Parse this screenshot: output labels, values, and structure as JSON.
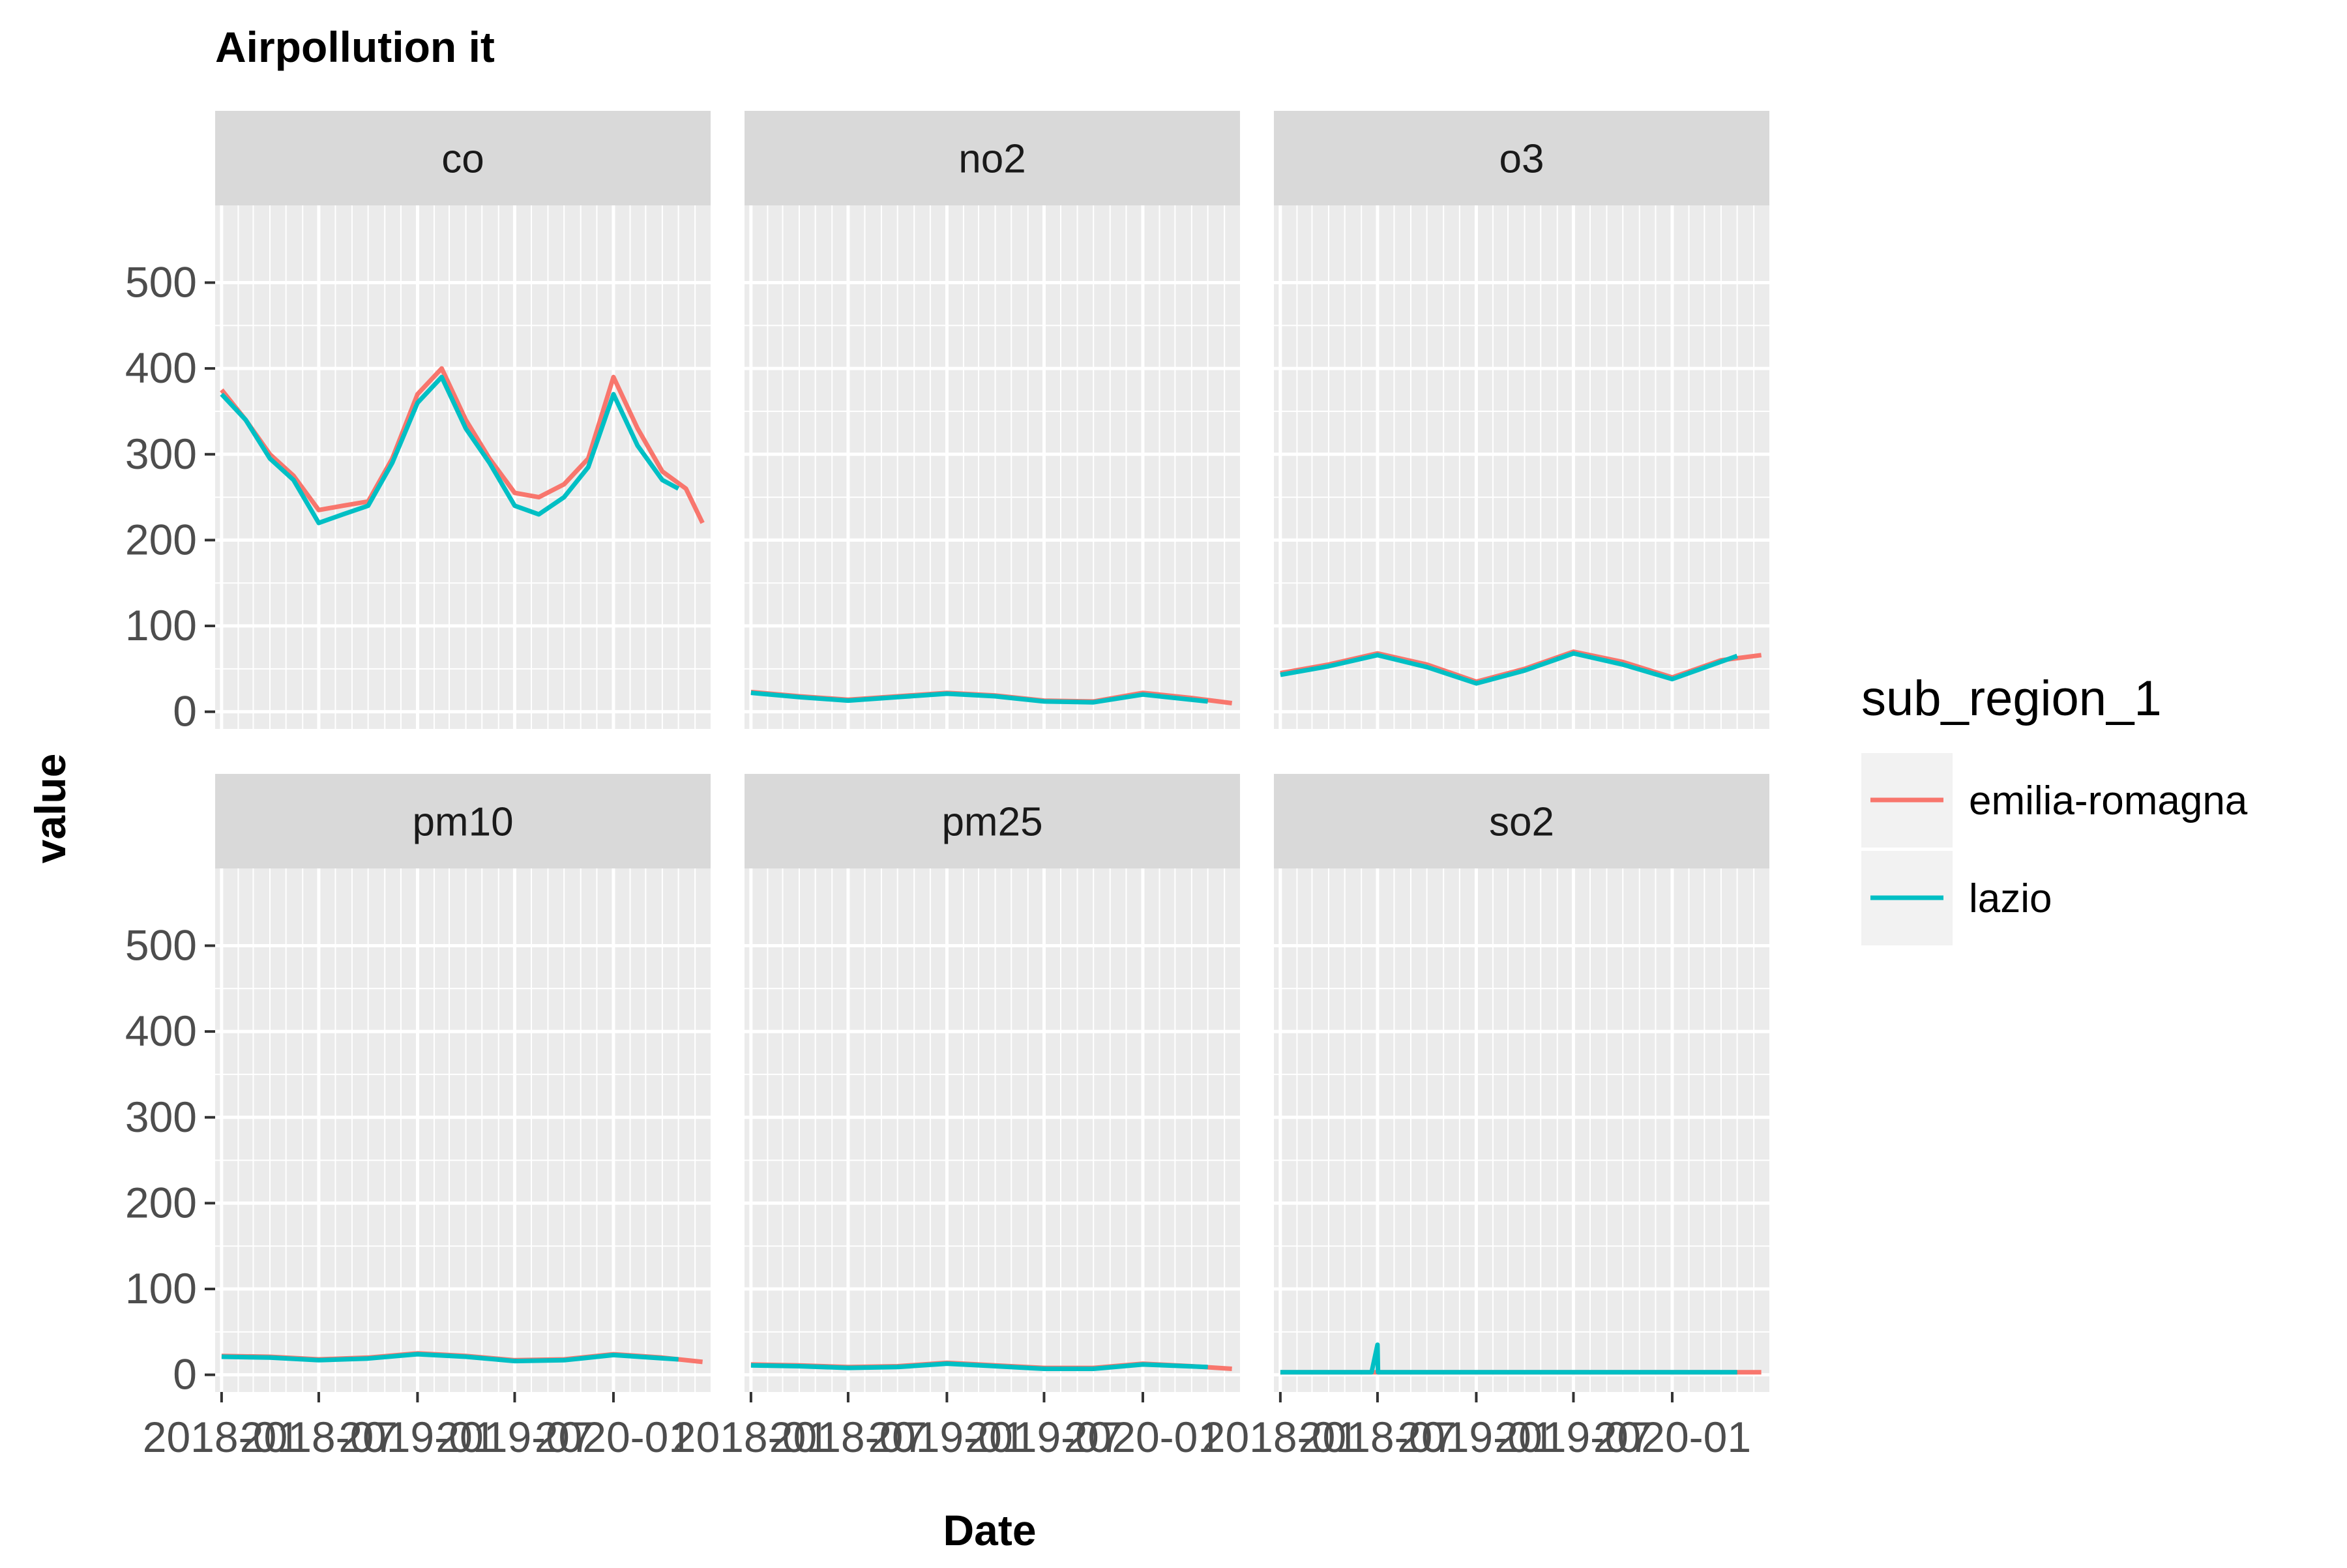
{
  "chart_data": {
    "type": "line",
    "title": "Airpollution it",
    "xlabel": "Date",
    "ylabel": "value",
    "ylim": [
      -20,
      590
    ],
    "y_ticks": [
      0,
      100,
      200,
      300,
      400,
      500
    ],
    "y_tick_labels": [
      "0",
      "100",
      "200",
      "300",
      "400",
      "500"
    ],
    "x_ticks": [
      "2018-01",
      "2018-07",
      "2019-01",
      "2019-07",
      "2020-01"
    ],
    "x_range": [
      "2017-12-20",
      "2020-06-30"
    ],
    "grid": true,
    "facet_layout": "2 rows x 3 columns",
    "legend": {
      "title": "sub_region_1",
      "position": "right",
      "entries": [
        {
          "name": "emilia-romagna",
          "color": "#F8766D"
        },
        {
          "name": "lazio",
          "color": "#00BFC4"
        }
      ]
    },
    "colors": {
      "emilia-romagna": "#F8766D",
      "lazio": "#00BFC4"
    },
    "panels": [
      {
        "label": "co",
        "series": [
          {
            "name": "emilia-romagna",
            "dates": [
              "2018-01-01",
              "2018-02-15",
              "2018-04-01",
              "2018-05-15",
              "2018-07-01",
              "2018-08-15",
              "2018-10-01",
              "2018-11-15",
              "2019-01-01",
              "2019-02-15",
              "2019-04-01",
              "2019-05-15",
              "2019-07-01",
              "2019-08-15",
              "2019-10-01",
              "2019-11-15",
              "2020-01-01",
              "2020-02-15",
              "2020-04-01",
              "2020-05-15",
              "2020-06-15"
            ],
            "values": [
              375,
              340,
              300,
              275,
              235,
              240,
              245,
              295,
              370,
              400,
              340,
              295,
              255,
              250,
              265,
              295,
              390,
              330,
              280,
              260,
              220
            ]
          },
          {
            "name": "lazio",
            "dates": [
              "2018-01-01",
              "2018-02-15",
              "2018-04-01",
              "2018-05-15",
              "2018-07-01",
              "2018-08-15",
              "2018-10-01",
              "2018-11-15",
              "2019-01-01",
              "2019-02-15",
              "2019-04-01",
              "2019-05-15",
              "2019-07-01",
              "2019-08-15",
              "2019-10-01",
              "2019-11-15",
              "2020-01-01",
              "2020-02-15",
              "2020-04-01",
              "2020-05-01"
            ],
            "values": [
              370,
              340,
              295,
              270,
              220,
              230,
              240,
              290,
              360,
              390,
              330,
              290,
              240,
              230,
              250,
              285,
              370,
              310,
              270,
              260
            ]
          }
        ]
      },
      {
        "label": "no2",
        "series": [
          {
            "name": "emilia-romagna",
            "dates": [
              "2018-01-01",
              "2018-04-01",
              "2018-07-01",
              "2018-10-01",
              "2019-01-01",
              "2019-04-01",
              "2019-07-01",
              "2019-10-01",
              "2020-01-01",
              "2020-04-01",
              "2020-06-15"
            ],
            "values": [
              23,
              18,
              14,
              18,
              22,
              19,
              13,
              12,
              22,
              16,
              10
            ]
          },
          {
            "name": "lazio",
            "dates": [
              "2018-01-01",
              "2018-04-01",
              "2018-07-01",
              "2018-10-01",
              "2019-01-01",
              "2019-04-01",
              "2019-07-01",
              "2019-10-01",
              "2020-01-01",
              "2020-05-01"
            ],
            "values": [
              22,
              17,
              13,
              17,
              21,
              18,
              12,
              11,
              20,
              12
            ]
          }
        ]
      },
      {
        "label": "o3",
        "series": [
          {
            "name": "emilia-romagna",
            "dates": [
              "2018-01-01",
              "2018-04-01",
              "2018-07-01",
              "2018-10-01",
              "2019-01-01",
              "2019-04-01",
              "2019-07-01",
              "2019-10-01",
              "2020-01-01",
              "2020-04-01",
              "2020-06-15"
            ],
            "values": [
              45,
              55,
              68,
              55,
              35,
              50,
              70,
              58,
              40,
              60,
              66
            ]
          },
          {
            "name": "lazio",
            "dates": [
              "2018-01-01",
              "2018-04-01",
              "2018-07-01",
              "2018-10-01",
              "2019-01-01",
              "2019-04-01",
              "2019-07-01",
              "2019-10-01",
              "2020-01-01",
              "2020-05-01"
            ],
            "values": [
              43,
              53,
              66,
              52,
              33,
              48,
              68,
              55,
              38,
              65
            ]
          }
        ]
      },
      {
        "label": "pm10",
        "series": [
          {
            "name": "emilia-romagna",
            "dates": [
              "2018-01-01",
              "2018-04-01",
              "2018-07-01",
              "2018-10-01",
              "2019-01-01",
              "2019-04-01",
              "2019-07-01",
              "2019-10-01",
              "2020-01-01",
              "2020-04-01",
              "2020-06-15"
            ],
            "values": [
              22,
              21,
              18,
              20,
              25,
              22,
              17,
              18,
              24,
              20,
              15
            ]
          },
          {
            "name": "lazio",
            "dates": [
              "2018-01-01",
              "2018-04-01",
              "2018-07-01",
              "2018-10-01",
              "2019-01-01",
              "2019-04-01",
              "2019-07-01",
              "2019-10-01",
              "2020-01-01",
              "2020-05-01"
            ],
            "values": [
              21,
              20,
              17,
              19,
              24,
              21,
              16,
              17,
              23,
              18
            ]
          }
        ]
      },
      {
        "label": "pm25",
        "series": [
          {
            "name": "emilia-romagna",
            "dates": [
              "2018-01-01",
              "2018-04-01",
              "2018-07-01",
              "2018-10-01",
              "2019-01-01",
              "2019-04-01",
              "2019-07-01",
              "2019-10-01",
              "2020-01-01",
              "2020-04-01",
              "2020-06-15"
            ],
            "values": [
              12,
              11,
              9,
              10,
              14,
              11,
              8,
              8,
              13,
              10,
              7
            ]
          },
          {
            "name": "lazio",
            "dates": [
              "2018-01-01",
              "2018-04-01",
              "2018-07-01",
              "2018-10-01",
              "2019-01-01",
              "2019-04-01",
              "2019-07-01",
              "2019-10-01",
              "2020-01-01",
              "2020-05-01"
            ],
            "values": [
              11,
              10,
              8,
              9,
              13,
              10,
              7,
              7,
              12,
              9
            ]
          }
        ]
      },
      {
        "label": "so2",
        "series": [
          {
            "name": "emilia-romagna",
            "dates": [
              "2018-01-01",
              "2018-07-01",
              "2019-01-01",
              "2019-07-01",
              "2020-01-01",
              "2020-06-15"
            ],
            "values": [
              3,
              3,
              3,
              3,
              3,
              3
            ]
          },
          {
            "name": "lazio",
            "dates": [
              "2018-01-01",
              "2018-06-20",
              "2018-07-01",
              "2018-07-02",
              "2018-07-10",
              "2019-01-01",
              "2019-07-01",
              "2020-01-01",
              "2020-05-01"
            ],
            "values": [
              3,
              3,
              35,
              3,
              3,
              3,
              3,
              3,
              3
            ]
          }
        ]
      }
    ]
  }
}
